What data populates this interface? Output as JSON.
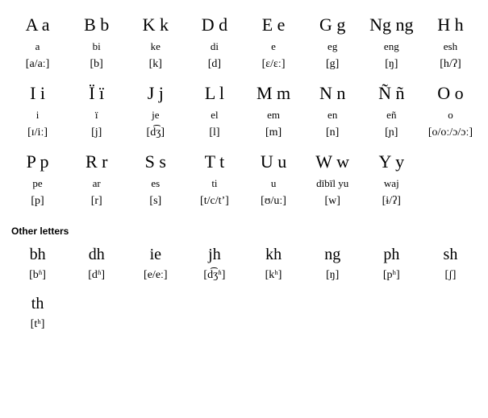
{
  "main_alphabet": [
    {
      "letter": "A a",
      "name": "a",
      "ipa": "[a/aː]"
    },
    {
      "letter": "B b",
      "name": "bi",
      "ipa": "[b]"
    },
    {
      "letter": "K k",
      "name": "ke",
      "ipa": "[k]"
    },
    {
      "letter": "D d",
      "name": "di",
      "ipa": "[d]"
    },
    {
      "letter": "E e",
      "name": "e",
      "ipa": "[ɛ/ɛː]"
    },
    {
      "letter": "G g",
      "name": "eg",
      "ipa": "[g]"
    },
    {
      "letter": "Ng ng",
      "name": "eng",
      "ipa": "[ŋ]"
    },
    {
      "letter": "H h",
      "name": "esh",
      "ipa": "[h/ʔ]"
    },
    {
      "letter": "I i",
      "name": "i",
      "ipa": "[ɪ/iː]"
    },
    {
      "letter": "Ï ï",
      "name": "ï",
      "ipa": "[j]"
    },
    {
      "letter": "J j",
      "name": "je",
      "ipa": "[d͡ʒ]"
    },
    {
      "letter": "L l",
      "name": "el",
      "ipa": "[l]"
    },
    {
      "letter": "M m",
      "name": "em",
      "ipa": "[m]"
    },
    {
      "letter": "N n",
      "name": "en",
      "ipa": "[n]"
    },
    {
      "letter": "Ñ ñ",
      "name": "eñ",
      "ipa": "[ɲ]"
    },
    {
      "letter": "O o",
      "name": "o",
      "ipa": "[o/oː/ɔ/ɔː]"
    },
    {
      "letter": "P p",
      "name": "pe",
      "ipa": "[p]"
    },
    {
      "letter": "R r",
      "name": "ar",
      "ipa": "[r]"
    },
    {
      "letter": "S s",
      "name": "es",
      "ipa": "[s]"
    },
    {
      "letter": "T t",
      "name": "ti",
      "ipa": "[t/c/tʼ]"
    },
    {
      "letter": "U u",
      "name": "u",
      "ipa": "[ʊ/uː]"
    },
    {
      "letter": "W w",
      "name": "dïbïl yu",
      "ipa": "[w]"
    },
    {
      "letter": "Y y",
      "name": "waj",
      "ipa": "[ɨ/ʔ]"
    }
  ],
  "section_title": "Other letters",
  "other_letters": [
    {
      "letter": "bh",
      "ipa": "[bʱ]"
    },
    {
      "letter": "dh",
      "ipa": "[dʱ]"
    },
    {
      "letter": "ie",
      "ipa": "[e/eː]"
    },
    {
      "letter": "jh",
      "ipa": "[d͡ʒʱ]"
    },
    {
      "letter": "kh",
      "ipa": "[kʰ]"
    },
    {
      "letter": "ng",
      "ipa": "[ŋ]"
    },
    {
      "letter": "ph",
      "ipa": "[pʰ]"
    },
    {
      "letter": "sh",
      "ipa": "[ʃ]"
    },
    {
      "letter": "th",
      "ipa": "[tʰ]"
    }
  ],
  "style": {
    "background_color": "#ffffff",
    "text_color": "#000000",
    "letter_fontsize": 22,
    "name_fontsize": 13,
    "ipa_fontsize": 14,
    "other_letter_fontsize": 20,
    "section_title_fontsize": 12,
    "columns": 8,
    "font_family_main": "Georgia, Times New Roman, serif",
    "font_family_title": "Verdana, Arial, sans-serif"
  }
}
